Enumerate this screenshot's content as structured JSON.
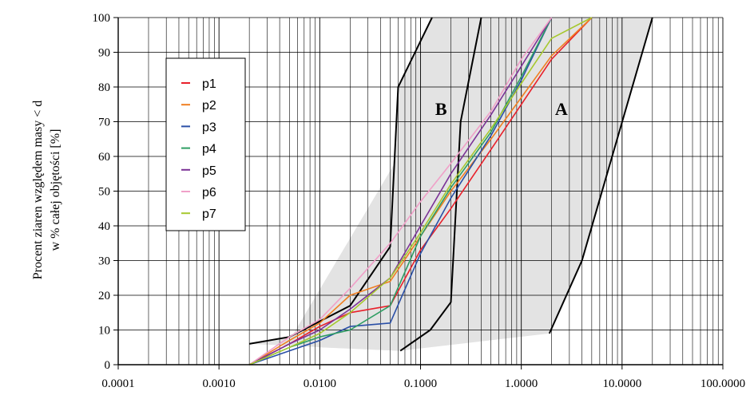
{
  "chart_data": {
    "type": "line",
    "title": "",
    "xlabel": "",
    "ylabel_lines": [
      "Procent ziaren względem masy < d",
      "w % całej objętości [%]"
    ],
    "x_scale": "log",
    "xlim": [
      0.0001,
      100
    ],
    "ylim": [
      0,
      100
    ],
    "x_tick_values": [
      0.0001,
      0.001,
      0.01,
      0.1,
      1,
      10,
      100
    ],
    "x_tick_labels": [
      "0.0001",
      "0.0010",
      "0.0100",
      "0.1000",
      "1.0000",
      "10.0000",
      "100.0000"
    ],
    "y_ticks": [
      0,
      10,
      20,
      30,
      40,
      50,
      60,
      70,
      80,
      90,
      100
    ],
    "grid": true,
    "legend_position": "left",
    "regions": [
      {
        "label": "B",
        "label_at": {
          "x": 0.16,
          "y": 72
        },
        "fill": "#e3e3e3",
        "boundary_left": {
          "x": [
            0.002,
            0.005,
            0.02,
            0.05,
            0.06,
            0.13
          ],
          "y": [
            6,
            8,
            17,
            34,
            80,
            100
          ]
        },
        "boundary_right": {
          "x": [
            0.063,
            0.125,
            0.2,
            0.25,
            0.4
          ],
          "y": [
            4,
            10,
            18,
            70,
            100
          ]
        }
      },
      {
        "label": "A",
        "label_at": {
          "x": 2.5,
          "y": 72
        },
        "fill": "#e3e3e3",
        "boundary_left": {
          "x": [
            0.25,
            0.4
          ],
          "y": [
            70,
            100
          ]
        },
        "boundary_right": {
          "x": [
            1.9,
            4,
            20
          ],
          "y": [
            9,
            30,
            100
          ]
        }
      }
    ],
    "series": [
      {
        "name": "p1",
        "color": "#e8202a",
        "x": [
          0.002,
          0.005,
          0.01,
          0.02,
          0.05,
          0.1,
          0.2,
          0.5,
          1,
          2,
          5
        ],
        "y": [
          0,
          6,
          11,
          15,
          17,
          33,
          45,
          62,
          75,
          88,
          100
        ]
      },
      {
        "name": "p2",
        "color": "#f07f21",
        "x": [
          0.002,
          0.005,
          0.01,
          0.02,
          0.05,
          0.1,
          0.2,
          0.5,
          1,
          2,
          5
        ],
        "y": [
          0,
          7,
          12,
          20,
          24,
          37,
          50,
          65,
          77,
          89,
          100
        ]
      },
      {
        "name": "p3",
        "color": "#2a4fa6",
        "x": [
          0.002,
          0.005,
          0.01,
          0.02,
          0.05,
          0.1,
          0.2,
          0.5,
          1,
          2
        ],
        "y": [
          0,
          4,
          7,
          11,
          12,
          32,
          48,
          66,
          82,
          100
        ]
      },
      {
        "name": "p4",
        "color": "#2e9e63",
        "x": [
          0.002,
          0.005,
          0.01,
          0.02,
          0.05,
          0.1,
          0.2,
          0.5,
          1,
          2
        ],
        "y": [
          0,
          5,
          8,
          10,
          17,
          37,
          51,
          67,
          83,
          100
        ]
      },
      {
        "name": "p5",
        "color": "#7b3296",
        "x": [
          0.002,
          0.005,
          0.01,
          0.02,
          0.05,
          0.1,
          0.2,
          0.5,
          1,
          2
        ],
        "y": [
          0,
          6,
          10,
          16,
          25,
          40,
          55,
          72,
          86,
          100
        ]
      },
      {
        "name": "p6",
        "color": "#f0a0c8",
        "x": [
          0.002,
          0.005,
          0.01,
          0.02,
          0.05,
          0.1,
          0.2,
          0.5,
          1,
          2
        ],
        "y": [
          0,
          8,
          13,
          22,
          35,
          47,
          58,
          73,
          88,
          100
        ]
      },
      {
        "name": "p7",
        "color": "#a6c82e",
        "x": [
          0.002,
          0.005,
          0.01,
          0.02,
          0.05,
          0.1,
          0.2,
          0.5,
          1,
          2,
          5
        ],
        "y": [
          0,
          5,
          9,
          15,
          25,
          38,
          52,
          68,
          81,
          94,
          100
        ]
      }
    ]
  }
}
